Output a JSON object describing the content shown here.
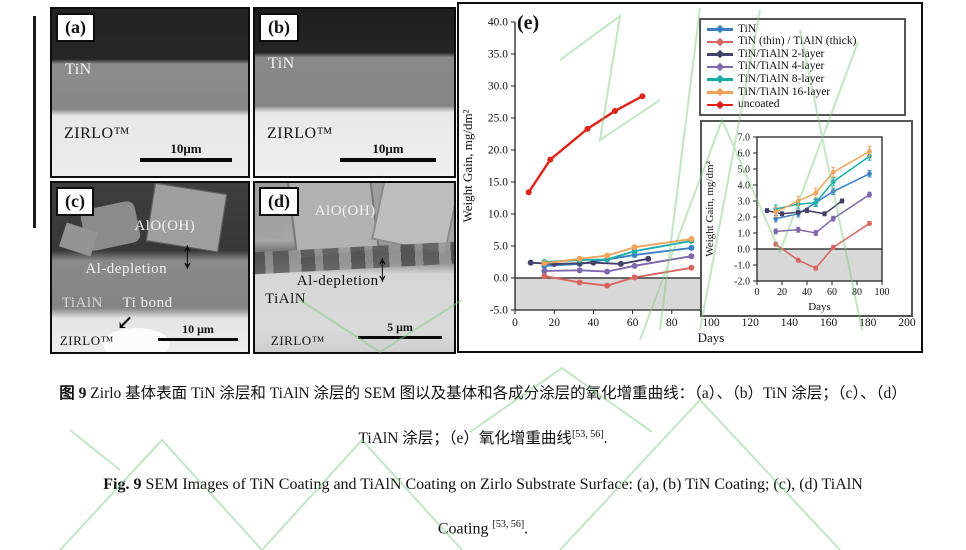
{
  "figure": {
    "panels": {
      "a": {
        "label": "(a)",
        "coating": "TiN",
        "substrate": "ZIRLO™",
        "scale_bar": "10μm"
      },
      "b": {
        "label": "(b)",
        "coating": "TiN",
        "substrate": "ZIRLO™",
        "scale_bar": "10μm"
      },
      "c": {
        "label": "(c)",
        "oxide": "AlO(OH)",
        "depletion": "Al-depletion",
        "coating": "TiAlN",
        "bond": "Ti bond",
        "substrate": "ZIRLO™",
        "scale_bar": "10 μm",
        "double_arrow_icon": "↕",
        "bond_arrow_icon": "↙"
      },
      "d": {
        "label": "(d)",
        "oxide": "AlO(OH)",
        "depletion": "Al-depletion",
        "coating": "TiAlN",
        "substrate": "ZIRLO™",
        "scale_bar": "5 μm",
        "double_arrow_icon": "↕"
      }
    }
  },
  "chart_data": [
    {
      "type": "line",
      "panel_label": "(e)",
      "xlabel": "Days",
      "ylabel": "Weight Gain, mg/dm²",
      "xlim": [
        0,
        200
      ],
      "ylim": [
        -5,
        40
      ],
      "xtick_step": 20,
      "ytick_step": 5,
      "ytick_decimals": 1,
      "grid": false,
      "shade_below_zero": true,
      "legend_position": "top-right",
      "series": [
        {
          "name": "TiN",
          "color": "#3a7fc1",
          "x": [
            15,
            33,
            47,
            61,
            90
          ],
          "y": [
            1.9,
            2.2,
            2.9,
            3.6,
            4.7
          ]
        },
        {
          "name": "TiN (thin) / TiAlN (thick)",
          "color": "#d9655f",
          "x": [
            15,
            33,
            47,
            61,
            90
          ],
          "y": [
            0.3,
            -0.7,
            -1.2,
            0.1,
            1.6
          ]
        },
        {
          "name": "TiN/TiAlN 2-layer",
          "color": "#43406a",
          "x": [
            8,
            20,
            33,
            40,
            54,
            68
          ],
          "y": [
            2.4,
            2.2,
            2.3,
            2.4,
            2.2,
            3.0
          ]
        },
        {
          "name": "TiN/TiAlN 4-layer",
          "color": "#7d68ae",
          "x": [
            15,
            33,
            47,
            61,
            90
          ],
          "y": [
            1.1,
            1.2,
            1.0,
            1.9,
            3.4
          ]
        },
        {
          "name": "TiN/TiAlN 8-layer",
          "color": "#19aeac",
          "x": [
            15,
            33,
            47,
            61,
            90
          ],
          "y": [
            2.5,
            2.8,
            2.9,
            4.2,
            5.8
          ]
        },
        {
          "name": "TiN/TiAlN 16-layer",
          "color": "#f2a259",
          "x": [
            15,
            33,
            47,
            61,
            90
          ],
          "y": [
            2.3,
            3.0,
            3.5,
            4.8,
            6.1
          ]
        },
        {
          "name": "uncoated",
          "color": "#e02318",
          "lw": 2.4,
          "x": [
            7,
            18,
            37,
            51,
            65
          ],
          "y": [
            13.4,
            18.5,
            23.3,
            26.1,
            28.4
          ]
        }
      ]
    },
    {
      "type": "line",
      "xlabel": "Days",
      "ylabel": "Weight Gain, mg/dm²",
      "xlim": [
        0,
        100
      ],
      "ylim": [
        -2,
        7
      ],
      "xtick_step": 20,
      "ytick_step": 1,
      "ytick_decimals": 1,
      "grid": false,
      "shade_below_zero": true,
      "errorbars": true,
      "series": [
        {
          "name": "TiN",
          "color": "#3a7fc1",
          "err": 0.2,
          "x": [
            15,
            33,
            47,
            61,
            90
          ],
          "y": [
            1.9,
            2.2,
            2.9,
            3.6,
            4.7
          ]
        },
        {
          "name": "TiN (thin) / TiAlN (thick)",
          "color": "#d9655f",
          "err": 0.12,
          "x": [
            15,
            33,
            47,
            61,
            90
          ],
          "y": [
            0.3,
            -0.7,
            -1.2,
            0.1,
            1.6
          ]
        },
        {
          "name": "TiN/TiAlN 2-layer",
          "color": "#43406a",
          "err": 0.12,
          "x": [
            8,
            20,
            33,
            40,
            54,
            68
          ],
          "y": [
            2.4,
            2.2,
            2.3,
            2.4,
            2.2,
            3.0
          ]
        },
        {
          "name": "TiN/TiAlN 4-layer",
          "color": "#7d68ae",
          "err": 0.15,
          "x": [
            15,
            33,
            47,
            61,
            90
          ],
          "y": [
            1.1,
            1.2,
            1.0,
            1.9,
            3.4
          ]
        },
        {
          "name": "TiN/TiAlN 8-layer",
          "color": "#19aeac",
          "err": 0.25,
          "x": [
            15,
            33,
            47,
            61,
            90
          ],
          "y": [
            2.5,
            2.8,
            2.9,
            4.2,
            5.8
          ]
        },
        {
          "name": "TiN/TiAlN 16-layer",
          "color": "#f2a259",
          "err": 0.3,
          "x": [
            15,
            33,
            47,
            61,
            90
          ],
          "y": [
            2.3,
            3.0,
            3.5,
            4.8,
            6.1
          ]
        }
      ]
    }
  ],
  "captions": {
    "zh_fig": "图 9",
    "zh_line1": " Zirlo 基体表面 TiN 涂层和 TiAlN 涂层的 SEM 图以及基体和各成分涂层的氧化增重曲线：（a）、（b）TiN 涂层；（c）、（d）",
    "zh_line2": "TiAlN 涂层；（e）氧化增重曲线",
    "ref_sup": "[53, 56]",
    "period": ".",
    "en_fig": "Fig. 9",
    "en_line1": " SEM Images of TiN Coating and TiAlN Coating on Zirlo Substrate Surface: (a), (b) TiN Coating; (c), (d) TiAlN",
    "en_line2": "Coating ",
    "en_ref_sup": "[53, 56]",
    "en_period": "."
  },
  "colors": {
    "watermark_green": "#7cc87c",
    "shade_gray": "#d8d8d8",
    "axis": "#222222"
  }
}
